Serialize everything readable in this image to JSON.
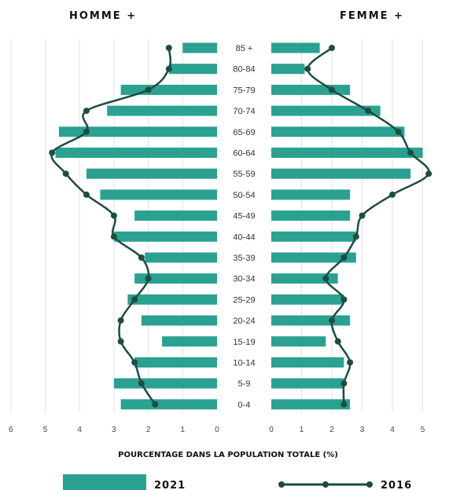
{
  "chart_data": {
    "type": "bar",
    "title_left": "HOMME +",
    "title_right": "FEMME +",
    "xlabel": "POURCENTAGE DANS LA POPULATION TOTALE (%)",
    "categories": [
      "85 +",
      "80-84",
      "75-79",
      "70-74",
      "65-69",
      "60-64",
      "55-59",
      "50-54",
      "45-49",
      "40-44",
      "35-39",
      "30-34",
      "25-29",
      "20-24",
      "15-19",
      "10-14",
      "5-9",
      "0-4"
    ],
    "male_xlim": [
      0,
      6
    ],
    "female_xlim": [
      0,
      5
    ],
    "male_ticks": [
      "6",
      "5",
      "4",
      "3",
      "2",
      "1",
      "0"
    ],
    "female_ticks": [
      "0",
      "1",
      "2",
      "3",
      "4",
      "5"
    ],
    "grid": true,
    "series": [
      {
        "name": "2021",
        "style": "bars",
        "color": "#2aa191",
        "male": [
          1.0,
          1.4,
          2.8,
          3.2,
          4.6,
          4.7,
          3.8,
          3.4,
          2.4,
          3.0,
          2.1,
          2.4,
          2.6,
          2.2,
          1.6,
          2.4,
          3.0,
          2.8
        ],
        "female": [
          1.6,
          1.1,
          2.6,
          3.6,
          4.4,
          5.0,
          4.6,
          2.6,
          2.6,
          2.8,
          2.8,
          2.2,
          2.4,
          2.6,
          1.8,
          2.4,
          2.4,
          2.6
        ]
      },
      {
        "name": "2016",
        "style": "line",
        "color": "#1d4d3e",
        "male": [
          1.4,
          1.4,
          2.0,
          3.8,
          3.8,
          4.8,
          4.4,
          3.8,
          3.0,
          3.0,
          2.2,
          2.0,
          2.4,
          2.8,
          2.8,
          2.4,
          2.2,
          1.8
        ],
        "female": [
          2.0,
          1.2,
          2.0,
          3.2,
          4.2,
          4.6,
          5.2,
          4.0,
          3.0,
          2.8,
          2.4,
          1.8,
          2.4,
          2.0,
          2.2,
          2.6,
          2.4,
          2.4
        ]
      }
    ]
  }
}
